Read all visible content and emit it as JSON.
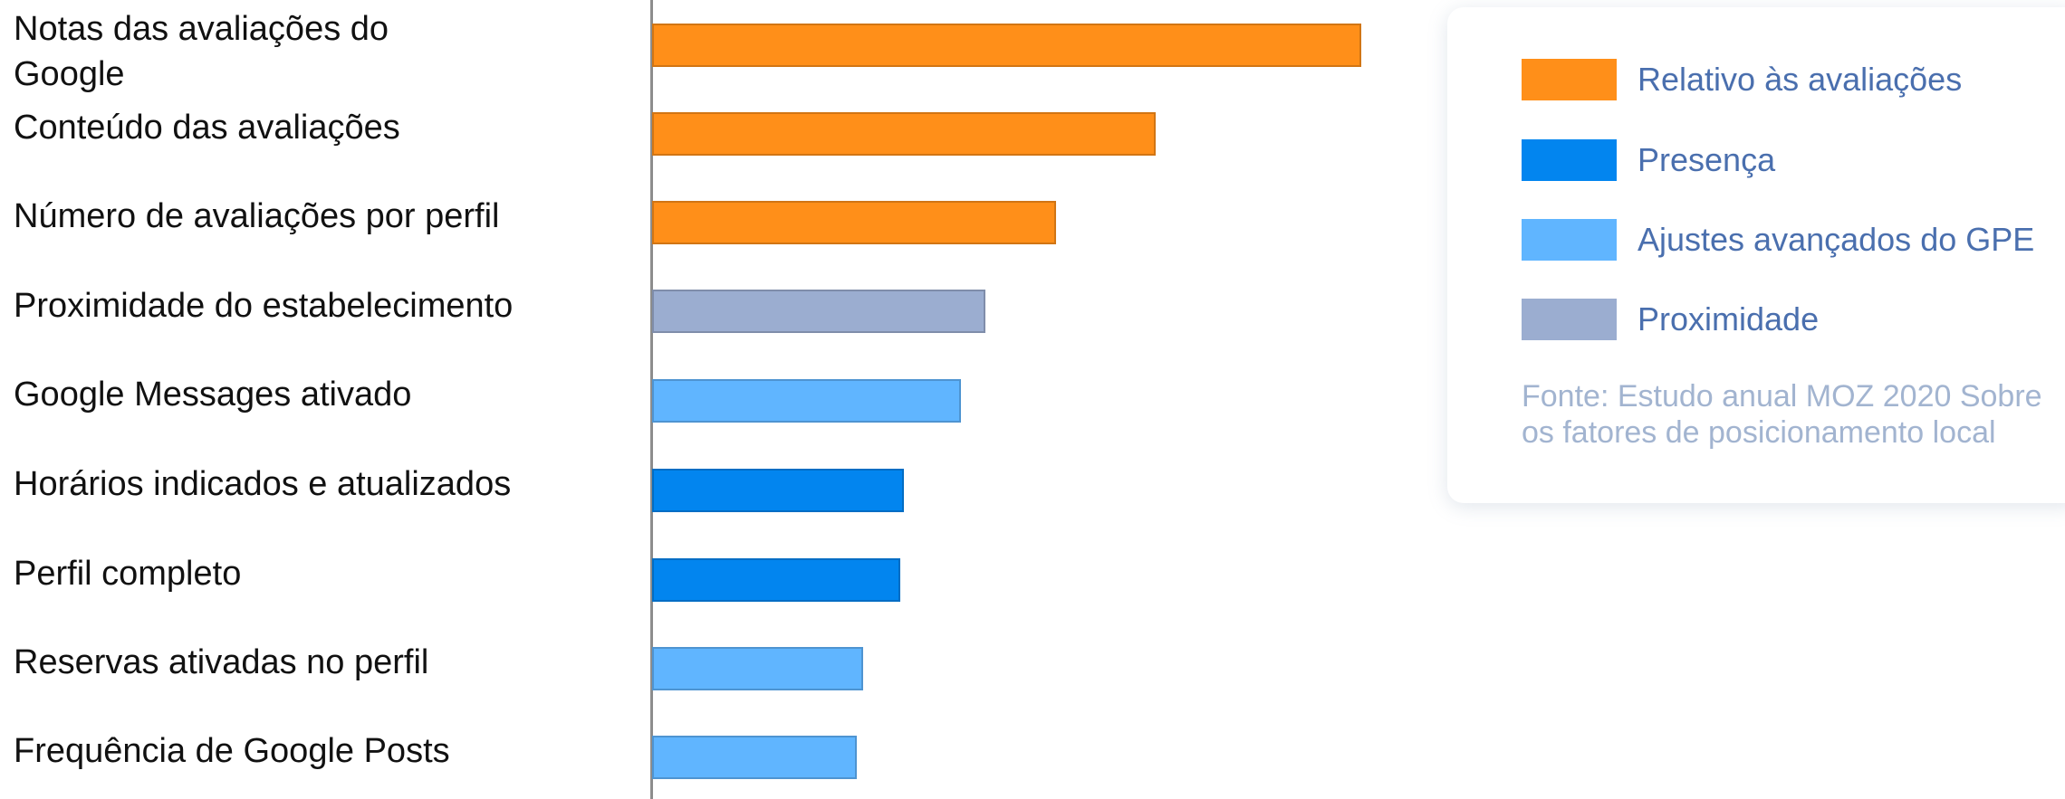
{
  "chart_data": {
    "type": "bar",
    "orientation": "horizontal",
    "title": "",
    "xlabel": "",
    "ylabel": "",
    "xlim": [
      0,
      1
    ],
    "grid": false,
    "legend_position": "right",
    "categories": [
      "Notas das avaliações do Google",
      "Conteúdo das avaliações",
      "Número de avaliações por perfil",
      "Proximidade do estabelecimento",
      "Google Messages ativado",
      "Horários indicados e atualizados",
      "Perfil completo",
      "Reservas ativadas no perfil",
      "Frequência de Google Posts"
    ],
    "values": [
      1.0,
      0.71,
      0.57,
      0.47,
      0.435,
      0.355,
      0.35,
      0.297,
      0.288
    ],
    "groups": [
      "Relativo às avaliações",
      "Relativo às avaliações",
      "Relativo às avaliações",
      "Proximidade",
      "Ajustes avançados do GPE",
      "Presença",
      "Presença",
      "Ajustes avançados do GPE",
      "Ajustes avançados do GPE"
    ],
    "legend": [
      {
        "label": "Relativo às avaliações",
        "color": "#ff8f19"
      },
      {
        "label": "Presença",
        "color": "#0285ef"
      },
      {
        "label": "Ajustes avançados do GPE",
        "color": "#60b5ff"
      },
      {
        "label": "Proximidade",
        "color": "#9badd0"
      }
    ],
    "source": "Fonte: Estudo anual MOZ 2020 Sobre os fatores de posicionamento local"
  }
}
